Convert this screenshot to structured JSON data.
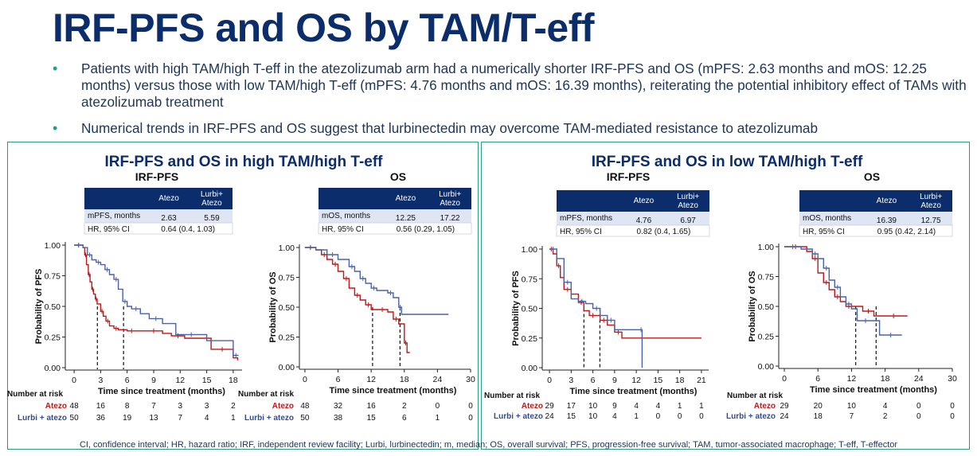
{
  "title": "IRF-PFS and OS by TAM/T-eff",
  "bullets": [
    "Patients with high TAM/high T-eff in the atezolizumab arm had a numerically shorter IRF-PFS and OS (mPFS: 2.63 months and mOS: 12.25 months) versus those with low TAM/high T-eff (mPFS: 4.76 months and mOS: 16.39 months), reiterating the potential inhibitory effect of TAMs with atezolizumab treatment",
    "Numerical trends in IRF-PFS and OS suggest that lurbinectedin may overcome TAM-mediated resistance to atezolizumab"
  ],
  "footnote": "CI, confidence interval; HR, hazard ratio; IRF, independent review facility; Lurbi, lurbinectedin; m, median; OS, overall survival; PFS, progression-free survival; TAM, tumor-associated macrophage; T-eff, T-effector",
  "colors": {
    "atezo": "#c01818",
    "lurbi": "#4a62a8",
    "header": "#0b2d6b",
    "border": "#2a9a80",
    "row": "#dfe5f2"
  },
  "panels": [
    {
      "title": "IRF-PFS and OS in high TAM/high T-eff"
    },
    {
      "title": "IRF-PFS and OS in low TAM/high T-eff"
    }
  ],
  "risk_labels": {
    "header": "Number at risk",
    "atezo": "Atezo",
    "lurbi": "Lurbi + atezo"
  },
  "chart_data": [
    {
      "type": "line",
      "subtitle": "IRF-PFS",
      "xlabel": "Time since treatment (months)",
      "ylabel": "Probability of PFS",
      "xlim": [
        -1,
        19
      ],
      "ylim": [
        0,
        1
      ],
      "xticks": [
        0,
        3,
        6,
        9,
        12,
        15,
        18
      ],
      "yticks": [
        "0.00",
        "0.25",
        "0.50",
        "0.75",
        "1.00"
      ],
      "table": {
        "cols": [
          "Atezo",
          "Lurbi+ Atezo"
        ],
        "rows": [
          {
            "label": "mPFS, months",
            "values": [
              "2.63",
              "5.59"
            ]
          },
          {
            "label": "HR, 95% CI",
            "values": [
              "0.64 (0.4, 1.03)"
            ]
          }
        ]
      },
      "medians": [
        2.63,
        5.59
      ],
      "series": [
        {
          "name": "Atezo",
          "x": [
            0,
            1,
            1.2,
            1.4,
            1.6,
            1.8,
            2.0,
            2.2,
            2.4,
            2.6,
            3.0,
            3.3,
            3.6,
            4.0,
            4.5,
            5.0,
            6.0,
            7.0,
            8.0,
            10.0,
            11.0,
            12.5,
            15.5,
            18.0,
            18.5
          ],
          "y": [
            1.0,
            0.98,
            0.92,
            0.84,
            0.76,
            0.7,
            0.64,
            0.6,
            0.56,
            0.52,
            0.46,
            0.42,
            0.38,
            0.34,
            0.32,
            0.31,
            0.3,
            0.3,
            0.3,
            0.28,
            0.26,
            0.24,
            0.15,
            0.08,
            0.06
          ]
        },
        {
          "name": "Lurbi + atezo",
          "x": [
            0,
            1,
            1.5,
            2.0,
            2.5,
            3.0,
            3.5,
            4.0,
            4.5,
            5.0,
            5.5,
            6.0,
            6.5,
            7.5,
            8.5,
            10.0,
            11.5,
            15.0,
            18.0,
            18.6
          ],
          "y": [
            1.0,
            0.98,
            0.92,
            0.88,
            0.86,
            0.84,
            0.8,
            0.76,
            0.72,
            0.64,
            0.54,
            0.5,
            0.48,
            0.44,
            0.4,
            0.36,
            0.27,
            0.22,
            0.1,
            0.1
          ]
        }
      ],
      "risk": {
        "times": [
          0,
          3,
          6,
          9,
          12,
          15,
          18
        ],
        "atezo": [
          "48",
          "16",
          "8",
          "7",
          "3",
          "3",
          "2"
        ],
        "lurbi": [
          "50",
          "36",
          "19",
          "13",
          "7",
          "4",
          "1"
        ]
      }
    },
    {
      "type": "line",
      "subtitle": "OS",
      "xlabel": "Time since treatment (months)",
      "ylabel": "Probability of OS",
      "xlim": [
        -1,
        30
      ],
      "ylim": [
        0,
        1
      ],
      "xticks": [
        0,
        6,
        12,
        18,
        24,
        30
      ],
      "yticks": [
        "0.00",
        "0.25",
        "0.50",
        "0.75",
        "1.00"
      ],
      "table": {
        "cols": [
          "Atezo",
          "Lurbi+ Atezo"
        ],
        "rows": [
          {
            "label": "mOS, months",
            "values": [
              "12.25",
              "17.22"
            ]
          },
          {
            "label": "HR, 95% CI",
            "values": [
              "0.56 (0.29, 1.05)"
            ]
          }
        ]
      },
      "medians": [
        12.25,
        17.22
      ],
      "series": [
        {
          "name": "Atezo",
          "x": [
            0,
            2,
            3,
            4,
            5,
            6,
            7,
            8,
            9,
            10,
            11,
            12,
            13,
            15,
            16,
            17,
            18,
            18.5,
            19
          ],
          "y": [
            1.0,
            0.98,
            0.94,
            0.9,
            0.86,
            0.8,
            0.74,
            0.66,
            0.6,
            0.56,
            0.52,
            0.48,
            0.48,
            0.46,
            0.4,
            0.36,
            0.2,
            0.12,
            0.12
          ]
        },
        {
          "name": "Lurbi + atezo",
          "x": [
            0,
            2,
            4,
            6,
            8,
            9,
            10,
            11,
            12,
            13,
            15,
            16,
            17,
            17.5,
            26
          ],
          "y": [
            1.0,
            0.98,
            0.94,
            0.9,
            0.84,
            0.8,
            0.74,
            0.7,
            0.66,
            0.64,
            0.62,
            0.58,
            0.5,
            0.44,
            0.44
          ]
        }
      ],
      "risk": {
        "times": [
          0,
          6,
          12,
          18,
          24,
          30
        ],
        "atezo": [
          "48",
          "32",
          "16",
          "2",
          "0",
          "0"
        ],
        "lurbi": [
          "50",
          "38",
          "15",
          "6",
          "1",
          "0"
        ]
      }
    },
    {
      "type": "line",
      "subtitle": "IRF-PFS",
      "xlabel": "Time since treatment (months)",
      "ylabel": "Probability of PFS",
      "xlim": [
        -1,
        22
      ],
      "ylim": [
        0,
        1
      ],
      "xticks": [
        0,
        3,
        6,
        9,
        12,
        15,
        18,
        21
      ],
      "yticks": [
        "0.00",
        "0.25",
        "0.50",
        "0.75",
        "1.00"
      ],
      "table": {
        "cols": [
          "Atezo",
          "Lurbi+ Atezo"
        ],
        "rows": [
          {
            "label": "mPFS, months",
            "values": [
              "4.76",
              "6.97"
            ]
          },
          {
            "label": "HR, 95% CI",
            "values": [
              "0.82 (0.4, 1.65)"
            ]
          }
        ]
      },
      "medians": [
        4.76,
        6.97
      ],
      "series": [
        {
          "name": "Atezo",
          "x": [
            0,
            0.5,
            1.0,
            1.5,
            2.0,
            3.0,
            4.0,
            4.76,
            5.5,
            6.5,
            7.0,
            8.0,
            9.0,
            10.0,
            21
          ],
          "y": [
            1.0,
            0.96,
            0.86,
            0.76,
            0.66,
            0.62,
            0.55,
            0.48,
            0.44,
            0.44,
            0.4,
            0.36,
            0.3,
            0.25,
            0.25
          ]
        },
        {
          "name": "Lurbi + atezo",
          "x": [
            0,
            1.0,
            2.0,
            3.0,
            4.0,
            5.0,
            6.0,
            7.0,
            8.0,
            9.0,
            12.5,
            12.8
          ],
          "y": [
            1.0,
            0.92,
            0.72,
            0.58,
            0.56,
            0.54,
            0.5,
            0.44,
            0.4,
            0.32,
            0.32,
            0.0
          ]
        }
      ],
      "risk": {
        "times": [
          0,
          3,
          6,
          9,
          12,
          15,
          18,
          21
        ],
        "atezo": [
          "29",
          "17",
          "10",
          "9",
          "4",
          "4",
          "1",
          "1"
        ],
        "lurbi": [
          "24",
          "15",
          "10",
          "4",
          "1",
          "0",
          "0",
          "0"
        ]
      }
    },
    {
      "type": "line",
      "subtitle": "OS",
      "xlabel": "Time since treatment (months)",
      "ylabel": "Probability of OS",
      "xlim": [
        -1,
        30
      ],
      "ylim": [
        0,
        1
      ],
      "xticks": [
        0,
        6,
        12,
        18,
        24,
        30
      ],
      "yticks": [
        "0.00",
        "0.25",
        "0.50",
        "0.75",
        "1.00"
      ],
      "table": {
        "cols": [
          "Atezo",
          "Lurbi+ Atezo"
        ],
        "rows": [
          {
            "label": "mOS, months",
            "values": [
              "16.39",
              "12.75"
            ]
          },
          {
            "label": "HR, 95% CI",
            "values": [
              "0.95 (0.42, 2.14)"
            ]
          }
        ]
      },
      "medians": [
        12.75,
        16.39
      ],
      "series": [
        {
          "name": "Atezo",
          "x": [
            0,
            4,
            5,
            6,
            7,
            8,
            9,
            10,
            11,
            12,
            14,
            16,
            17,
            22
          ],
          "y": [
            1.0,
            0.96,
            0.9,
            0.78,
            0.7,
            0.64,
            0.58,
            0.54,
            0.5,
            0.5,
            0.46,
            0.42,
            0.42,
            0.42
          ]
        },
        {
          "name": "Lurbi + atezo",
          "x": [
            0,
            3,
            5,
            6,
            7,
            8,
            9,
            10,
            11,
            12,
            13,
            16,
            17,
            21
          ],
          "y": [
            1.0,
            0.98,
            0.94,
            0.9,
            0.82,
            0.72,
            0.66,
            0.58,
            0.52,
            0.48,
            0.38,
            0.38,
            0.26,
            0.26
          ]
        }
      ],
      "risk": {
        "times": [
          0,
          6,
          12,
          18,
          24,
          30
        ],
        "atezo": [
          "29",
          "20",
          "10",
          "4",
          "0",
          "0"
        ],
        "lurbi": [
          "24",
          "18",
          "7",
          "2",
          "0",
          "0"
        ]
      }
    }
  ]
}
